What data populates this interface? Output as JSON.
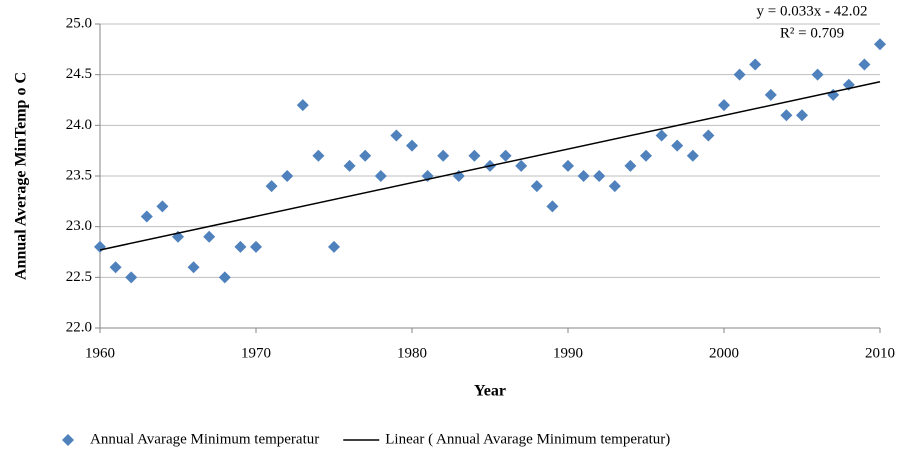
{
  "chart_data": {
    "type": "scatter",
    "x_label": "Year",
    "y_label": "Annual Average MinTemp o C",
    "annotations": [
      "y = 0.033x - 42.02",
      "R² = 0.709"
    ],
    "xlim": [
      1960,
      2010
    ],
    "xticks": [
      1960,
      1970,
      1980,
      1990,
      2000,
      2010
    ],
    "ylim": [
      22,
      25
    ],
    "yticks": [
      {
        "value": 22,
        "label": "22.0"
      },
      {
        "value": 22.5,
        "label": "22.5"
      },
      {
        "value": 23,
        "label": "23.0"
      },
      {
        "value": 23.5,
        "label": "23.5"
      },
      {
        "value": 24,
        "label": "24.0"
      },
      {
        "value": 24.5,
        "label": "24.5"
      },
      {
        "value": 25,
        "label": "25.0"
      }
    ],
    "grid": true,
    "series": [
      {
        "name": "Annual Avarage Minimum temperatur",
        "color": "#4f81bd",
        "x": [
          1960,
          1961,
          1962,
          1963,
          1964,
          1965,
          1966,
          1967,
          1968,
          1969,
          1970,
          1971,
          1972,
          1973,
          1974,
          1975,
          1976,
          1977,
          1978,
          1979,
          1980,
          1981,
          1982,
          1983,
          1984,
          1985,
          1986,
          1987,
          1988,
          1989,
          1990,
          1991,
          1992,
          1993,
          1994,
          1995,
          1996,
          1997,
          1998,
          1999,
          2000,
          2001,
          2002,
          2003,
          2004,
          2005,
          2006,
          2007,
          2008,
          2009,
          2010
        ],
        "values": [
          22.8,
          22.6,
          22.5,
          23.1,
          23.2,
          22.9,
          22.6,
          22.9,
          22.5,
          22.8,
          22.8,
          23.4,
          23.5,
          24.2,
          23.7,
          22.8,
          23.6,
          23.7,
          23.5,
          23.9,
          23.8,
          23.5,
          23.7,
          23.5,
          23.7,
          23.6,
          23.7,
          23.6,
          23.4,
          23.2,
          23.6,
          23.5,
          23.5,
          23.4,
          23.6,
          23.7,
          23.9,
          23.8,
          23.7,
          23.9,
          24.2,
          24.5,
          24.6,
          24.3,
          24.1,
          24.1,
          24.5,
          24.3,
          24.4,
          24.6,
          24.8
        ]
      },
      {
        "name": "Linear ( Annual Avarage Minimum temperatur)",
        "color": "#000000",
        "line": true,
        "x": [
          1960,
          2010
        ],
        "values": [
          22.77,
          24.43
        ]
      }
    ]
  }
}
